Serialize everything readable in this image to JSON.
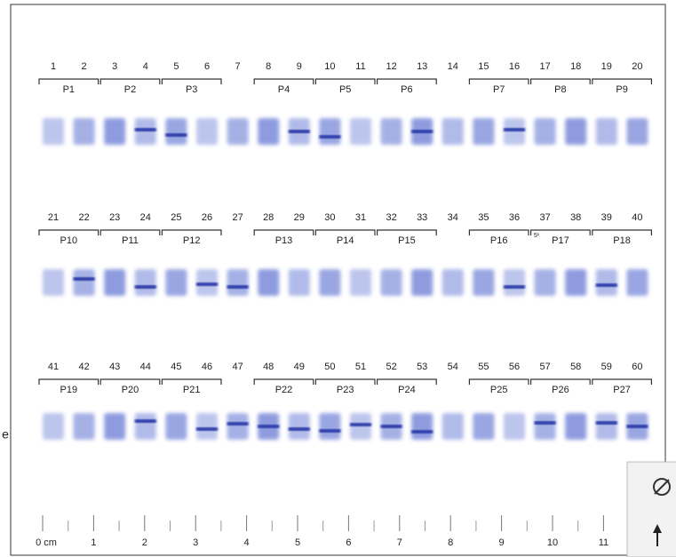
{
  "rows": [
    {
      "lanes": [
        "1",
        "2",
        "3",
        "4",
        "5",
        "6",
        "7",
        "8",
        "9",
        "10",
        "11",
        "12",
        "13",
        "14",
        "15",
        "16",
        "17",
        "18",
        "19",
        "20"
      ],
      "pairs": [
        "P1",
        "P2",
        "P3",
        "P4",
        "P5",
        "P6",
        "P7",
        "P8",
        "P9"
      ]
    },
    {
      "lanes": [
        "21",
        "22",
        "23",
        "24",
        "25",
        "26",
        "27",
        "28",
        "29",
        "30",
        "31",
        "32",
        "33",
        "34",
        "35",
        "36",
        "37",
        "38",
        "39",
        "40"
      ],
      "pairs": [
        "P10",
        "P11",
        "P12",
        "P13",
        "P14",
        "P15",
        "P16",
        "P17",
        "P18"
      ]
    },
    {
      "lanes": [
        "41",
        "42",
        "43",
        "44",
        "45",
        "46",
        "47",
        "48",
        "49",
        "50",
        "51",
        "52",
        "53",
        "54",
        "55",
        "56",
        "57",
        "58",
        "59",
        "60"
      ],
      "pairs": [
        "P19",
        "P20",
        "P21",
        "P22",
        "P23",
        "P24",
        "P25",
        "P26",
        "P27"
      ]
    }
  ],
  "ruler": {
    "labels": [
      "0 cm",
      "1",
      "2",
      "3",
      "4",
      "5",
      "6",
      "7",
      "8",
      "9",
      "10",
      "11"
    ]
  },
  "stray_mark": "5¹",
  "edge_text": "e"
}
